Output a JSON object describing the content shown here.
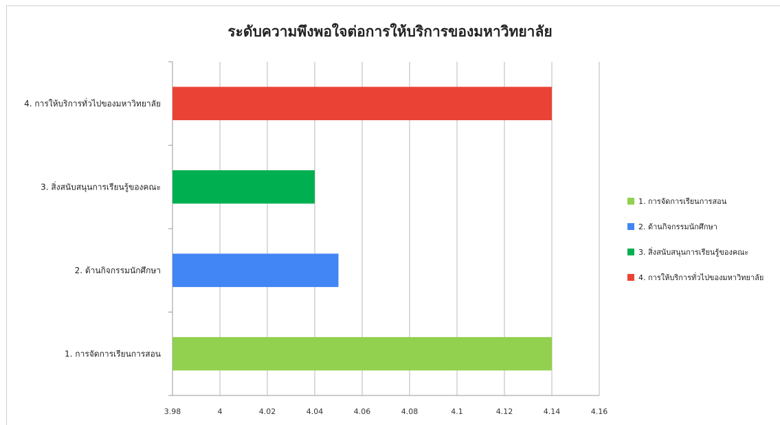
{
  "chart_data": {
    "type": "bar",
    "orientation": "horizontal",
    "title": "ระดับความพึงพอใจต่อการให้บริการของมหาวิทยาลัย",
    "xlabel": "",
    "ylabel": "",
    "xlim": [
      3.98,
      4.16
    ],
    "x_ticks": [
      "3.98",
      "4",
      "4.02",
      "4.04",
      "4.06",
      "4.08",
      "4.1",
      "4.12",
      "4.14",
      "4.16"
    ],
    "grid": true,
    "legend_position": "right",
    "categories": [
      "1. การจัดการเรียนการสอน",
      "2. ด้านกิจกรรมนักศึกษา",
      "3.  สิ่งสนับสนุนการเรียนรู้ของคณะ",
      "4. การให้บริการทั่วไปของมหาวิทยาลัย"
    ],
    "values": [
      4.14,
      4.05,
      4.04,
      4.14
    ],
    "colors": [
      "#92d050",
      "#4285f4",
      "#00b050",
      "#ea4335"
    ]
  }
}
